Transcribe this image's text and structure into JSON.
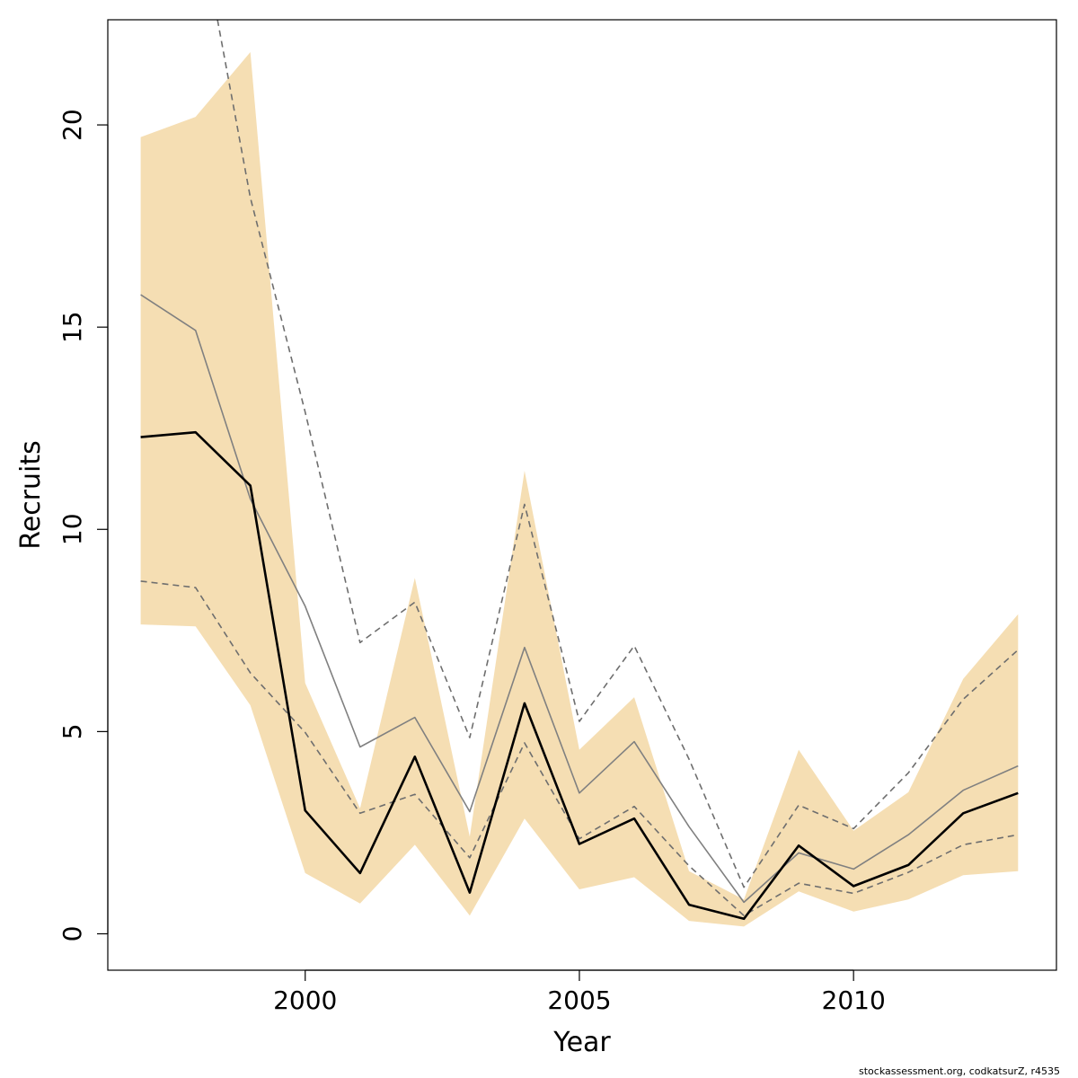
{
  "chart_data": {
    "type": "line",
    "title": "",
    "xlabel": "Year",
    "ylabel": "Recruits",
    "xlim": [
      1996.4,
      2013.7
    ],
    "ylim": [
      -0.9,
      22.6
    ],
    "x_ticks": [
      2000,
      2005,
      2010
    ],
    "y_ticks": [
      0,
      5,
      10,
      15,
      20
    ],
    "grid": false,
    "legend": "none",
    "x": [
      1997,
      1998,
      1999,
      2000,
      2001,
      2002,
      2003,
      2004,
      2005,
      2006,
      2007,
      2008,
      2009,
      2010,
      2011,
      2012,
      2013
    ],
    "band": {
      "color": "#F5DEB3",
      "lower": [
        7.65,
        7.6,
        5.65,
        1.5,
        0.75,
        2.2,
        0.45,
        2.85,
        1.1,
        1.4,
        0.32,
        0.18,
        1.05,
        0.55,
        0.85,
        1.45,
        1.55
      ],
      "upper": [
        19.7,
        20.2,
        21.8,
        6.2,
        3.1,
        8.8,
        2.4,
        11.45,
        4.55,
        5.85,
        1.55,
        0.85,
        4.55,
        2.55,
        3.5,
        6.3,
        7.9
      ]
    },
    "series": [
      {
        "style": "solid",
        "color": "#000000",
        "values": [
          12.28,
          12.4,
          11.08,
          3.05,
          1.5,
          4.38,
          1.02,
          5.7,
          2.22,
          2.85,
          0.72,
          0.37,
          2.18,
          1.18,
          1.7,
          2.98,
          3.48
        ]
      },
      {
        "style": "solid",
        "color": "#808080",
        "values": [
          15.8,
          14.92,
          10.75,
          8.1,
          4.62,
          5.35,
          3.02,
          7.08,
          3.48,
          4.75,
          2.65,
          0.78,
          2.0,
          1.6,
          2.45,
          3.55,
          4.15
        ]
      },
      {
        "style": "dashed",
        "color": "#6e6e6e",
        "values": [
          null,
          null,
          18.2,
          12.9,
          7.2,
          8.2,
          4.85,
          10.62,
          5.25,
          7.12,
          4.32,
          1.15,
          3.18,
          2.6,
          3.98,
          5.8,
          7.02
        ]
      },
      {
        "style": "dashed",
        "color": "#6e6e6e",
        "values": [
          8.72,
          8.56,
          6.45,
          4.98,
          2.98,
          3.45,
          1.88,
          4.72,
          2.35,
          3.15,
          1.68,
          0.45,
          1.25,
          1.0,
          1.52,
          2.2,
          2.45
        ]
      }
    ],
    "dashed_upper_lead_in": {
      "x": 1998.4,
      "y": 22.6
    },
    "credit": "stockassessment.org, codkatsurZ, r4535"
  }
}
